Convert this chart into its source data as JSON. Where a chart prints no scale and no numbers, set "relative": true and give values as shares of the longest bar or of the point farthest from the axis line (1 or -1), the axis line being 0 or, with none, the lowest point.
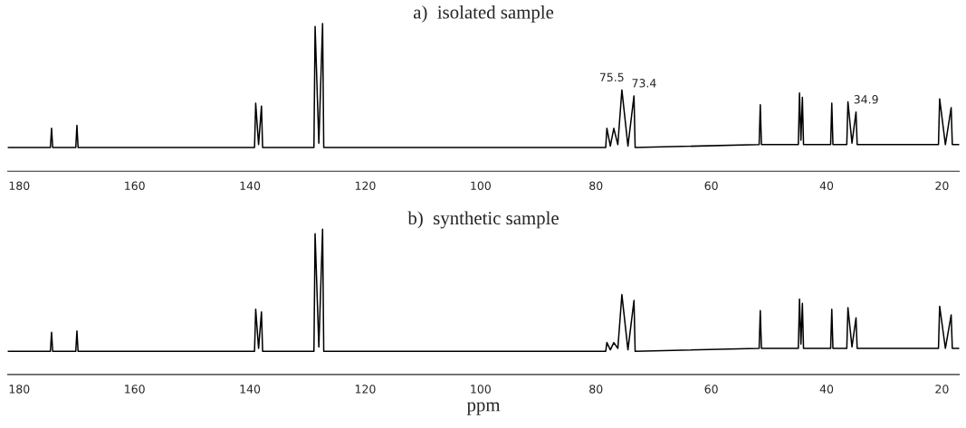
{
  "chart_data": [
    {
      "type": "line",
      "title": "a)  isolated sample",
      "relative": true,
      "tick_labels": "x",
      "xlim": [
        182,
        17
      ],
      "xticks": [
        180,
        160,
        140,
        120,
        100,
        80,
        60,
        40,
        20
      ],
      "x": [
        182,
        174.6,
        174.4,
        174.2,
        170.2,
        170,
        169.8,
        139.2,
        139,
        138.5,
        138,
        137.8,
        128.9,
        128.7,
        128.05,
        127.4,
        127.2,
        78.3,
        78.1,
        77.5,
        76.9,
        76.2,
        75.5,
        74.45,
        73.4,
        73.2,
        51.7,
        51.5,
        51.3,
        44.9,
        44.7,
        44.45,
        44.2,
        44,
        39.3,
        39.1,
        38.9,
        36.5,
        36.3,
        35.6,
        34.9,
        34.7,
        20.6,
        20.4,
        19.4,
        18.4,
        18.2,
        17
      ],
      "series": [
        {
          "color": "#000000",
          "values": [
            0.16,
            0.16,
            0.29,
            0.16,
            0.16,
            0.31,
            0.16,
            0.16,
            0.46,
            0.18,
            0.44,
            0.16,
            0.16,
            0.98,
            0.19,
            1.0,
            0.16,
            0.16,
            0.29,
            0.17,
            0.29,
            0.18,
            0.55,
            0.17,
            0.51,
            0.16,
            0.18,
            0.45,
            0.18,
            0.18,
            0.53,
            0.21,
            0.5,
            0.18,
            0.18,
            0.46,
            0.18,
            0.18,
            0.47,
            0.19,
            0.4,
            0.18,
            0.18,
            0.49,
            0.18,
            0.43,
            0.18,
            0.18
          ]
        }
      ],
      "annotations": [
        {
          "text": "75.5",
          "x": 75.5,
          "y": 0.55
        },
        {
          "text": "73.4",
          "x": 73.4,
          "y": 0.51
        },
        {
          "text": "34.9",
          "x": 34.9,
          "y": 0.4
        }
      ]
    },
    {
      "type": "line",
      "title": "b)  synthetic sample",
      "xlabel": "ppm",
      "relative": true,
      "tick_labels": "x",
      "xlim": [
        182,
        17
      ],
      "xticks": [
        180,
        160,
        140,
        120,
        100,
        80,
        60,
        40,
        20
      ],
      "x": [
        182,
        174.6,
        174.4,
        174.2,
        170.2,
        170,
        169.8,
        139.2,
        139,
        138.5,
        138,
        137.8,
        128.9,
        128.7,
        128.05,
        127.4,
        127.2,
        78.3,
        78.1,
        77.5,
        76.9,
        76.2,
        75.5,
        74.45,
        73.4,
        73.2,
        51.7,
        51.5,
        51.3,
        44.9,
        44.7,
        44.45,
        44.2,
        44,
        39.3,
        39.1,
        38.9,
        36.5,
        36.3,
        35.6,
        34.9,
        34.7,
        20.6,
        20.4,
        19.4,
        18.4,
        18.2,
        17
      ],
      "series": [
        {
          "color": "#000000",
          "values": [
            0.16,
            0.16,
            0.29,
            0.16,
            0.16,
            0.3,
            0.16,
            0.16,
            0.45,
            0.18,
            0.43,
            0.16,
            0.16,
            0.97,
            0.19,
            1.0,
            0.16,
            0.16,
            0.22,
            0.17,
            0.22,
            0.18,
            0.55,
            0.17,
            0.51,
            0.16,
            0.18,
            0.44,
            0.18,
            0.18,
            0.52,
            0.21,
            0.49,
            0.18,
            0.18,
            0.45,
            0.18,
            0.18,
            0.46,
            0.19,
            0.39,
            0.18,
            0.18,
            0.47,
            0.18,
            0.41,
            0.18,
            0.18
          ]
        }
      ]
    }
  ]
}
